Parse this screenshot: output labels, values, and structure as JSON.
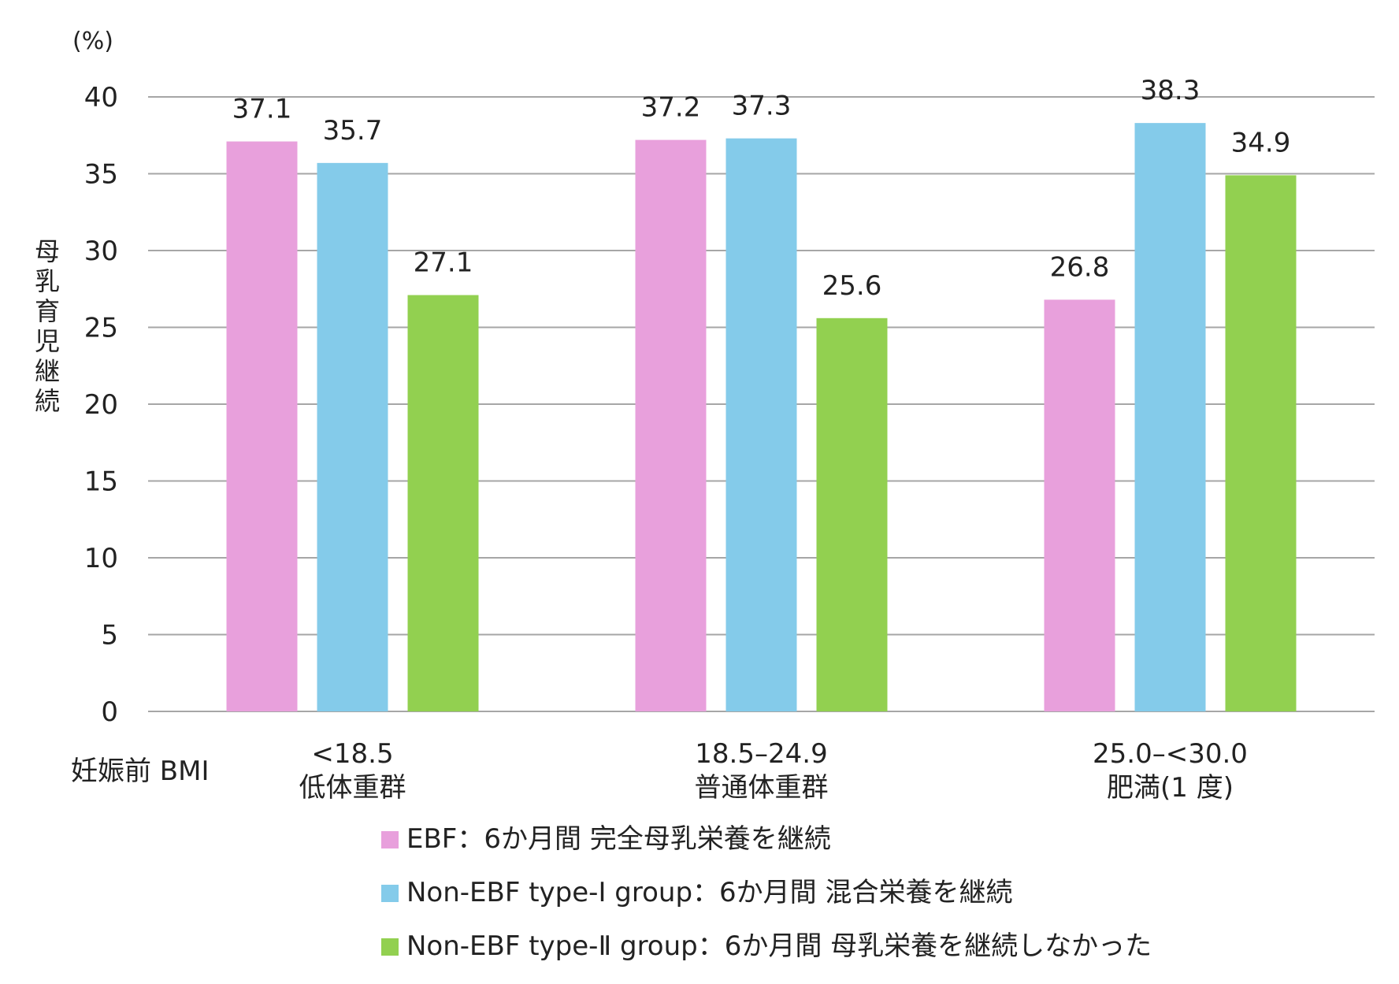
{
  "chart_data": {
    "type": "bar",
    "unit_label": "(%)",
    "ylabel": "母乳育児継続",
    "xlabel": "妊娠前 BMI",
    "ylim": [
      0,
      40
    ],
    "yticks": [
      0,
      5,
      10,
      15,
      20,
      25,
      30,
      35,
      40
    ],
    "grid": true,
    "legend_position": "bottom",
    "categories": [
      {
        "line1": "<18.5",
        "line2": "低体重群"
      },
      {
        "line1": "18.5–24.9",
        "line2": "普通体重群"
      },
      {
        "line1": "25.0–<30.0",
        "line2": "肥満(1 度)"
      }
    ],
    "series": [
      {
        "name": "EBF：6か月間 完全母乳栄養を継続",
        "color": "#e8a0dc",
        "values": [
          37.1,
          37.2,
          26.8
        ]
      },
      {
        "name": "Non-EBF type-Ⅰ group：6か月間 混合栄養を継続",
        "color": "#84cbea",
        "values": [
          35.7,
          37.3,
          38.3
        ]
      },
      {
        "name": "Non-EBF type-Ⅱ group：6か月間 母乳栄養を継続しなかった",
        "color": "#92d050",
        "values": [
          27.1,
          25.6,
          34.9
        ]
      }
    ]
  }
}
